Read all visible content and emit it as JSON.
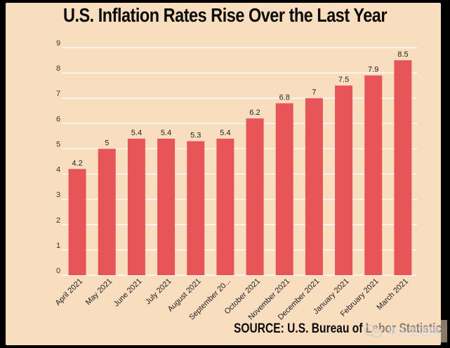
{
  "chart_data": {
    "type": "bar",
    "title": "U.S. Inflation Rates Rise Over the Last Year",
    "categories": [
      "April 2021",
      "May 2021",
      "June 2021",
      "July 2021",
      "August 2021",
      "September 20...",
      "October 2021",
      "November 2021",
      "December 2021",
      "January 2021",
      "February 2021",
      "March 2021"
    ],
    "values": [
      4.2,
      5,
      5.4,
      5.4,
      5.3,
      5.4,
      6.2,
      6.8,
      7,
      7.5,
      7.9,
      8.5
    ],
    "data_labels": [
      "4.2",
      "5",
      "5.4",
      "5.4",
      "5.3",
      "5.4",
      "6.2",
      "6.8",
      "7",
      "7.5",
      "7.9",
      "8.5"
    ],
    "yticks": [
      "0",
      "1",
      "2",
      "3",
      "4",
      "5",
      "6",
      "7",
      "8",
      "9"
    ],
    "ylim": [
      0,
      9
    ],
    "xlabel": "",
    "ylabel": "",
    "grid": true,
    "legend": "none",
    "bar_color": "#e85558",
    "background_color": "#f9ddbf",
    "grid_color": "#ffffff",
    "source": "SOURCE: U.S. Bureau of Labor Statistics"
  },
  "watermark": {
    "logo_icon": "wechat-logo-icon",
    "text": "华人生活网"
  }
}
